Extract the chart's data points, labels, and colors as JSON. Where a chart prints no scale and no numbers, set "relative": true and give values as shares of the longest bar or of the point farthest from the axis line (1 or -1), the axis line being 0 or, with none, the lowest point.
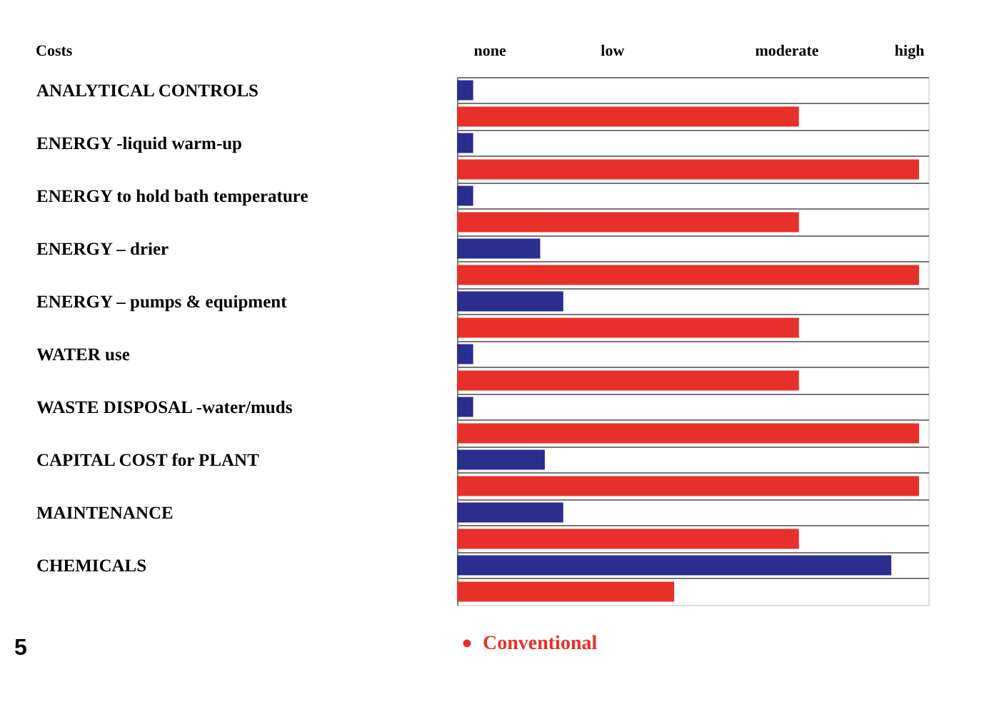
{
  "chart_data": {
    "type": "bar",
    "orientation": "horizontal",
    "relative": true,
    "categories": [
      "ANALYTICAL CONTROLS",
      null,
      "ENERGY -liquid warm-up",
      null,
      "ENERGY to hold bath temperature",
      null,
      "ENERGY – drier",
      null,
      "ENERGY – pumps & equipment",
      null,
      "WATER use",
      null,
      "WASTE DISPOSAL -water/muds",
      null,
      "CAPITAL COST for PLANT",
      null,
      "MAINTENANCE",
      null,
      "CHEMICALS",
      null
    ],
    "series": [
      {
        "color": "#2b2d8f",
        "values": [
          0.035,
          null,
          0.035,
          null,
          0.035,
          null,
          0.18,
          null,
          0.23,
          null,
          0.035,
          null,
          0.035,
          null,
          0.19,
          null,
          0.23,
          null,
          0.94,
          null
        ]
      },
      {
        "name": "Conventional",
        "color": "#e8302a",
        "values": [
          null,
          0.74,
          null,
          1,
          null,
          0.74,
          null,
          1,
          null,
          0.74,
          null,
          0.74,
          null,
          1,
          null,
          1,
          null,
          0.74,
          null,
          0.47
        ]
      }
    ],
    "annotations": [
      "Costs",
      "none",
      "low",
      "moderate",
      "high",
      "5"
    ],
    "grid": "y",
    "legend": "bottom"
  }
}
